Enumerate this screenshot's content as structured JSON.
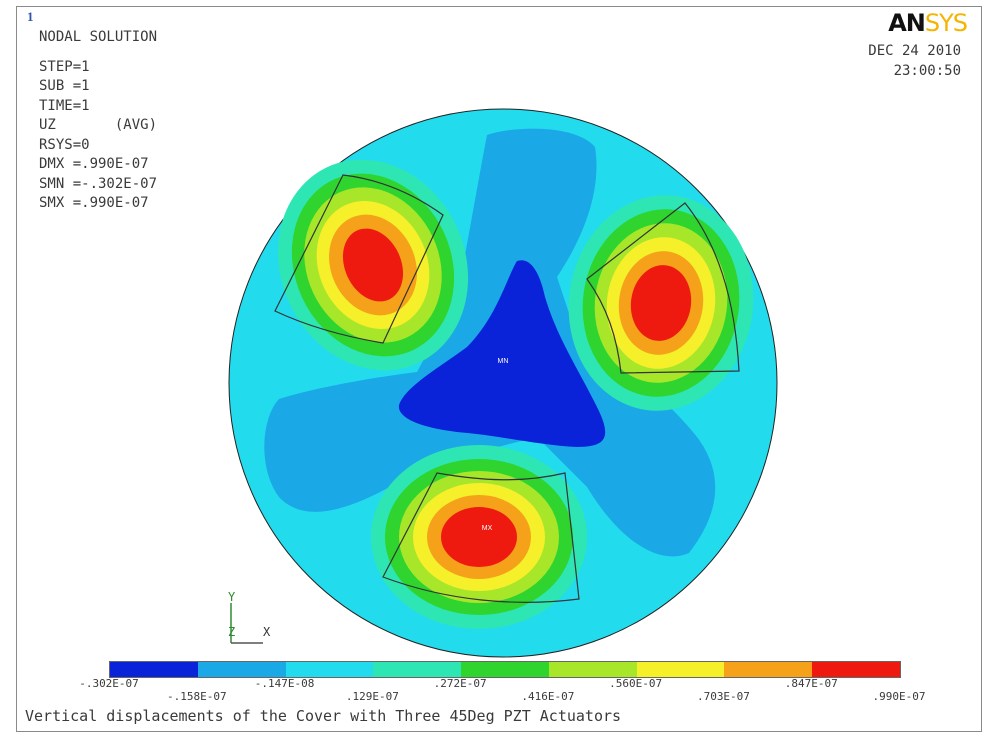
{
  "window_number": "1",
  "header": {
    "title": "NODAL SOLUTION",
    "params": [
      "STEP=1",
      "SUB =1",
      "TIME=1",
      "UZ       (AVG)",
      "RSYS=0",
      "DMX =.990E-07",
      "SMN =-.302E-07",
      "SMX =.990E-07"
    ]
  },
  "logo": {
    "part1": "AN",
    "part2": "SYS"
  },
  "date": "DEC 24 2010",
  "time": "23:00:50",
  "labels": {
    "min": "MN",
    "max": "MX"
  },
  "triad": {
    "y": "Y",
    "z": "Z",
    "x": "X"
  },
  "legend": {
    "colors": [
      "#0a22d8",
      "#1ba8e6",
      "#22dcee",
      "#2de6b4",
      "#2fd42f",
      "#a8e62a",
      "#f5f02a",
      "#f5a21a",
      "#ee1a10"
    ],
    "ticks": [
      "-.302E-07",
      "-.158E-07",
      "-.147E-08",
      ".129E-07",
      ".272E-07",
      ".416E-07",
      ".560E-07",
      ".703E-07",
      ".847E-07",
      ".990E-07"
    ]
  },
  "caption": "Vertical displacements of the Cover with Three 45Deg PZT Actuators"
}
